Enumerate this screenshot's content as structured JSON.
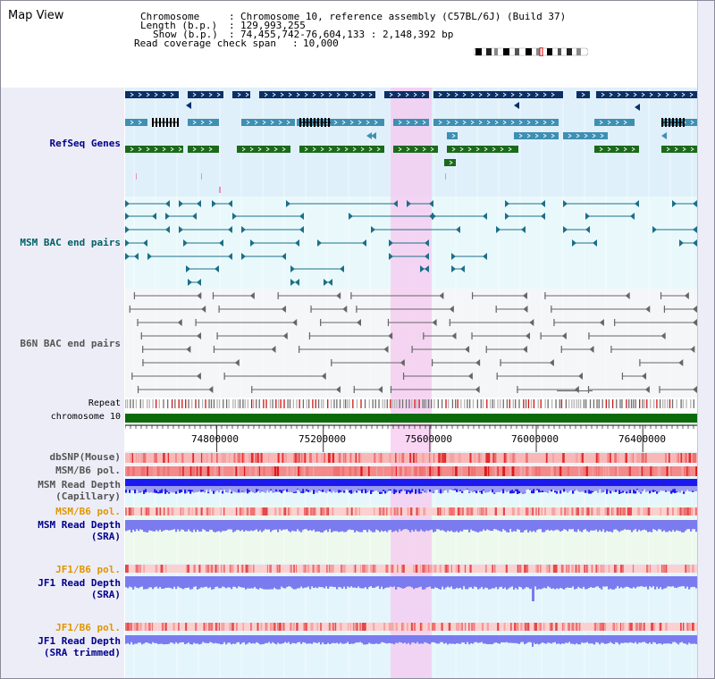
{
  "page": {
    "title": "Map View"
  },
  "info": {
    "chromosome_key": "Chromosome",
    "chromosome_val": "Chromosome 10, reference assembly (C57BL/6J) (Build 37)",
    "length_key": "Length (b.p.)",
    "length_val": "129,993,255",
    "show_key": "Show (b.p.)",
    "show_val": "74,455,742-76,604,133 : 2,148,392 bp",
    "coverage_key": "Read coverage check span",
    "coverage_val": "10,000"
  },
  "tracks": {
    "refseq": "RefSeq Genes",
    "msm_bac": "MSM BAC end pairs",
    "b6n_bac": "B6N BAC end pairs",
    "repeat": "Repeat",
    "chromosome": "chromosome 10",
    "dbsnp": "dbSNP(Mouse)",
    "msm_b6_pol": "MSM/B6 pol.",
    "msm_depth_cap_1": "MSM Read Depth",
    "msm_depth_cap_2": "(Capillary)",
    "msm_b6_pol_2": "MSM/B6 pol.",
    "msm_depth_sra_1": "MSM Read Depth",
    "msm_depth_sra_2": "(SRA)",
    "jf1_b6_pol": "JF1/B6 pol.",
    "jf1_depth_sra_1": "JF1 Read Depth",
    "jf1_depth_sra_2": "(SRA)",
    "jf1_b6_pol_2": "JF1/B6 pol.",
    "jf1_depth_trim_1": "JF1 Read Depth",
    "jf1_depth_trim_2": "(SRA trimmed)"
  },
  "ruler": {
    "ticks": [
      "74800000",
      "75200000",
      "75600000",
      "76000000",
      "76400000"
    ],
    "tick_values": [
      74800000,
      75200000,
      75600000,
      76000000,
      76400000
    ]
  },
  "view": {
    "start": 74455742,
    "end": 76604133,
    "highlight_start": 75400000,
    "highlight_end": 75550000
  },
  "colors": {
    "refseq_dark": "#0b2f66",
    "refseq_mid": "#3f8fb3",
    "refseq_green": "#1a6a1a",
    "msm_bac": "#1d6e8a",
    "b6n_bac": "#666666",
    "highlight": "#f6c8f0",
    "chromosome": "#0b6b0b",
    "depth_blue": "#1a1aee",
    "depth_violet": "#7b7bf0",
    "pol_red": "#ee3b3b",
    "label_navy": "#00008b",
    "label_teal": "#006064",
    "label_gold": "#e19600"
  }
}
